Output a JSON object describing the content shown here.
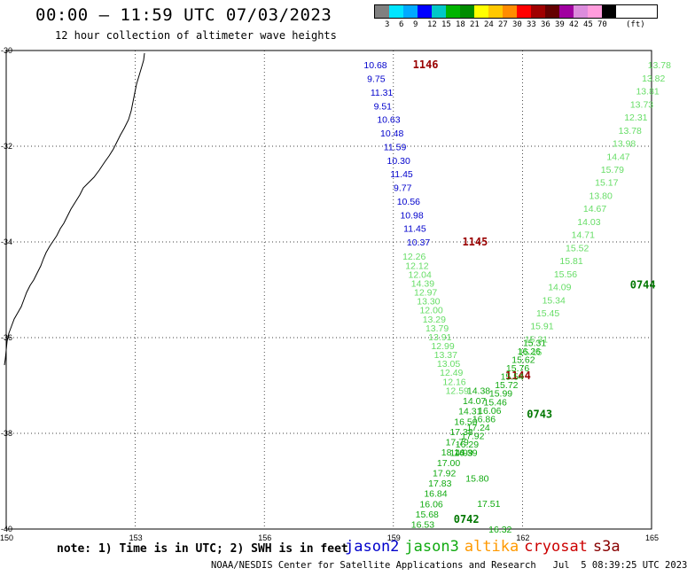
{
  "header": {
    "title": "00:00 – 11:59 UTC 07/03/2023",
    "subtitle": "12 hour collection of altimeter wave heights"
  },
  "legend": {
    "unit": "(ft)",
    "labels": [
      "3",
      "6",
      "9",
      "12",
      "15",
      "18",
      "21",
      "24",
      "27",
      "30",
      "33",
      "36",
      "39",
      "42",
      "45",
      "70"
    ],
    "colors": [
      "#808080",
      "#00e5ff",
      "#00aaff",
      "#0000ff",
      "#00c8c8",
      "#00b400",
      "#008c00",
      "#ffff00",
      "#ffc800",
      "#ff8c00",
      "#ff0000",
      "#a00000",
      "#640000",
      "#a000a0",
      "#dc8cdc",
      "#ff9cdc",
      "#000000"
    ]
  },
  "axes": {
    "lon_labels": [
      "150",
      "153",
      "156",
      "159",
      "162",
      "165"
    ],
    "lat_labels": [
      "-30",
      "-32",
      "-34",
      "-36",
      "-38",
      "-40"
    ]
  },
  "colors": {
    "blue": "#0000cc",
    "light_green": "#66dd66",
    "green": "#11aa11",
    "dark_green": "#007700",
    "time_red": "#990000",
    "time_green": "#007700"
  },
  "tracks": [
    {
      "time": "1146",
      "time_color": "#990000",
      "start_lat": -30.3,
      "end_lat": -34.0,
      "start_lon": 158.6,
      "end_lon": 159.6,
      "values": [
        "10.68",
        "9.75",
        "11.31",
        "9.51",
        "10.63",
        "10.48",
        "11.59",
        "10.30",
        "11.45",
        "9.77",
        "10.56",
        "10.98",
        "11.45",
        "10.37"
      ],
      "color": "#0000cc",
      "label_lat": -30.3,
      "label_lon": 159.45
    },
    {
      "time": "1145",
      "time_color": "#990000",
      "start_lat": -34.3,
      "end_lat": -37.1,
      "start_lon": 159.5,
      "end_lon": 160.5,
      "values": [
        "12.26",
        "12.12",
        "12.04",
        "14.39",
        "12.97",
        "13.30",
        "12.00",
        "13.29",
        "13.79",
        "13.91",
        "12.99",
        "13.37",
        "13.05",
        "12.49",
        "12.16",
        "12.59"
      ],
      "color": "#66dd66",
      "label_lat": -34.0,
      "label_lon": 160.6
    },
    {
      "time": "1144",
      "time_color": "#990000",
      "start_lat": -37.1,
      "end_lat": -39.9,
      "start_lon": 161.0,
      "end_lon": 159.7,
      "values": [
        "14.38",
        "14.07",
        "14.31",
        "16.50",
        "17.38",
        "17.79",
        "18.14",
        "17.00",
        "17.92",
        "17.83",
        "16.84",
        "16.06",
        "15.68",
        "16.53"
      ],
      "color": "#11aa11",
      "label_lat": -36.8,
      "label_lon": 161.6
    },
    {
      "time": "0744",
      "time_color": "#007700",
      "start_lat": -30.3,
      "end_lat": -36.3,
      "start_lon": 165.2,
      "end_lon": 162.2,
      "values": [
        "13.78",
        "13.82",
        "13.81",
        "13.73",
        "12.31",
        "13.78",
        "13.98",
        "14.47",
        "15.79",
        "15.17",
        "13.80",
        "14.67",
        "14.03",
        "14.71",
        "15.52",
        "15.81",
        "15.56",
        "14.09",
        "15.34",
        "15.45",
        "15.91",
        "15.31",
        "15.15"
      ],
      "color": "#66dd66",
      "label_lat": -34.9,
      "label_lon": 164.5
    },
    {
      "time": "0743",
      "time_color": "#007700",
      "start_lat": -36.1,
      "end_lat": -38.4,
      "start_lon": 162.3,
      "end_lon": 160.6,
      "values": [
        "15.31",
        "16.26",
        "15.62",
        "15.76",
        "15.54",
        "15.72",
        "15.99",
        "15.46",
        "16.06",
        "16.86",
        "17.24",
        "17.92",
        "16.29",
        "14.99"
      ],
      "color": "#11aa11",
      "label_lat": -37.6,
      "label_lon": 162.1
    },
    {
      "time": "0742",
      "time_color": "#007700",
      "start_lat": -38.4,
      "end_lat": -40.0,
      "start_lon": 160.7,
      "end_lon": 161.5,
      "values": [
        "16.39",
        "15.80",
        "17.51",
        "16.32"
      ],
      "color": "#11aa11",
      "label_lat": -39.8,
      "label_lon": 160.4
    }
  ],
  "footer": {
    "note": "note: 1) Time is in UTC; 2) SWH is in feet",
    "satellites": [
      {
        "name": "jason2",
        "color": "#0000cc"
      },
      {
        "name": "jason3",
        "color": "#11aa11"
      },
      {
        "name": "altika",
        "color": "#ff9900"
      },
      {
        "name": "cryosat",
        "color": "#cc0000"
      },
      {
        "name": "s3a",
        "color": "#880000"
      }
    ],
    "credit": "NOAA/NESDIS Center for Satellite Applications and Research",
    "generated": "Jul  5 08:39:25 UTC 2023"
  }
}
